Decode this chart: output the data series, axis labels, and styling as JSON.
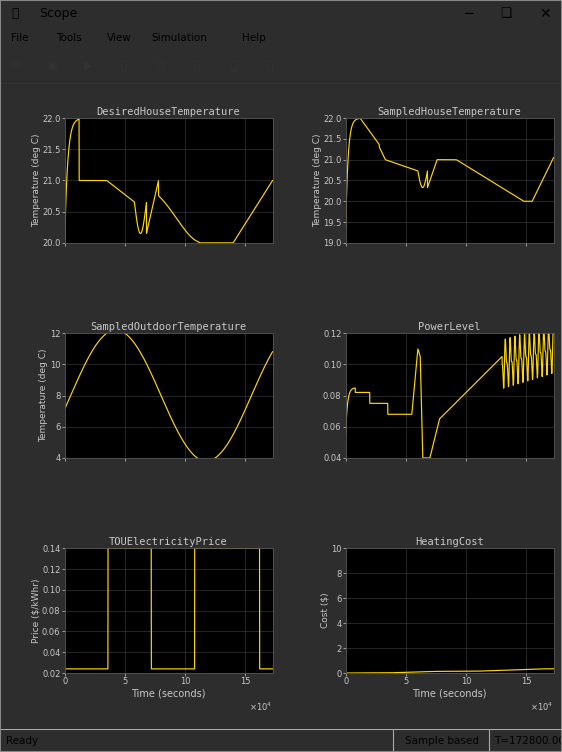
{
  "title": "Scope",
  "bg_color": "#2d2d2d",
  "plot_bg": "#000000",
  "line_color": "#FFD700",
  "grid_color": "#3a3a3a",
  "text_color": "#c8c8c8",
  "toolbar_bg": "#d4d0c8",
  "titlebar_bg": "#6a6a6a",
  "subplots": [
    {
      "title": "DesiredHouseTemperature",
      "ylabel": "Temperature (deg C)",
      "xlim": [
        0,
        172800
      ],
      "ylim": [
        20,
        22
      ],
      "yticks": [
        20,
        20.5,
        21,
        21.5,
        22
      ]
    },
    {
      "title": "SampledHouseTemperature",
      "ylabel": "Temperature (deg C)",
      "xlim": [
        0,
        172800
      ],
      "ylim": [
        19,
        22
      ],
      "yticks": [
        19,
        19.5,
        20,
        20.5,
        21,
        21.5,
        22
      ]
    },
    {
      "title": "SampledOutdoorTemperature",
      "ylabel": "Temperature (deg C)",
      "xlim": [
        0,
        172800
      ],
      "ylim": [
        4,
        12
      ],
      "yticks": [
        4,
        6,
        8,
        10,
        12
      ]
    },
    {
      "title": "PowerLevel",
      "ylabel": "",
      "xlim": [
        0,
        172800
      ],
      "ylim": [
        0.04,
        0.12
      ],
      "yticks": [
        0.04,
        0.06,
        0.08,
        0.1,
        0.12
      ]
    },
    {
      "title": "TOUElectricityPrice",
      "ylabel": "Price ($/kWhr)",
      "xlim": [
        0,
        172800
      ],
      "ylim": [
        0.02,
        0.14
      ],
      "yticks": [
        0.02,
        0.04,
        0.06,
        0.08,
        0.1,
        0.12,
        0.14
      ],
      "xlabel": "Time (seconds)"
    },
    {
      "title": "HeatingCost",
      "ylabel": "Cost ($)",
      "xlim": [
        0,
        172800
      ],
      "ylim": [
        0,
        10
      ],
      "yticks": [
        0,
        2,
        4,
        6,
        8,
        10
      ],
      "xlabel": "Time (seconds)"
    }
  ]
}
